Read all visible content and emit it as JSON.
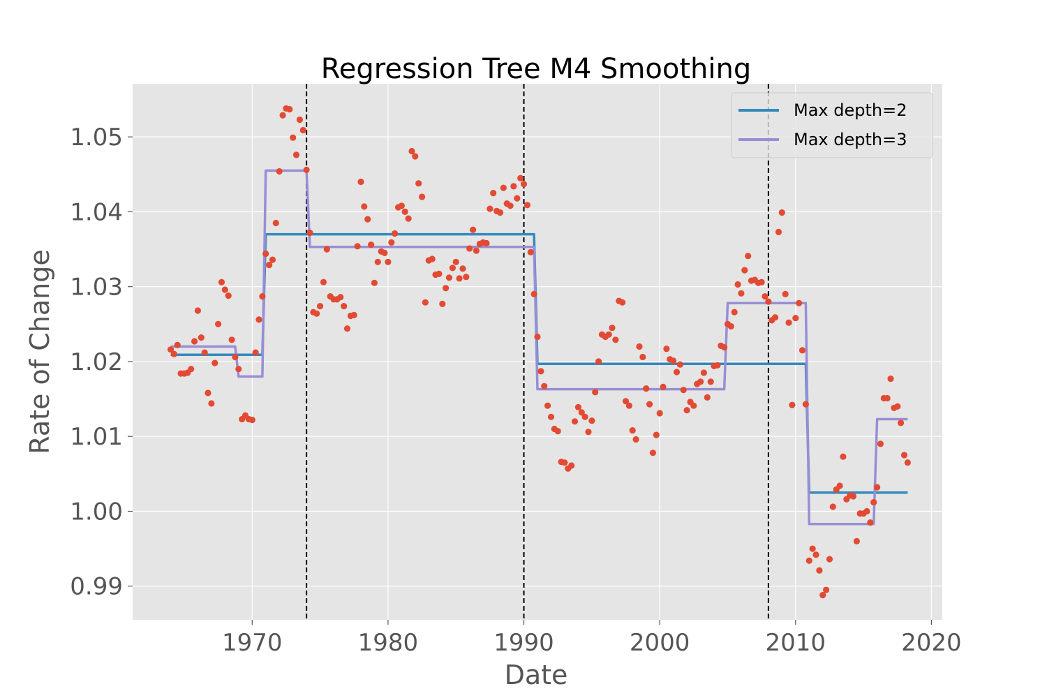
{
  "chart_data": {
    "type": "scatter",
    "title": "Regression Tree M4 Smoothing",
    "xlabel": "Date",
    "ylabel": "Rate of Change",
    "xlim": [
      1961.2,
      2020.8
    ],
    "ylim": [
      0.9855,
      1.0571
    ],
    "x_ticks": [
      1970,
      1980,
      1990,
      2000,
      2010,
      2020
    ],
    "x_tick_labels": [
      "1970",
      "1980",
      "1990",
      "2000",
      "2010",
      "2020"
    ],
    "y_ticks": [
      0.99,
      1.0,
      1.01,
      1.02,
      1.03,
      1.04,
      1.05
    ],
    "y_tick_labels": [
      "0.99",
      "1.00",
      "1.01",
      "1.02",
      "1.03",
      "1.04",
      "1.05"
    ],
    "grid": true,
    "legend_position": "top-right",
    "colors": {
      "background": "#e5e5e5",
      "grid": "#ffffff",
      "points": "#e24a33",
      "depth2": "#348abd",
      "depth3": "#988ed5",
      "vlines": "#000000"
    },
    "vlines": [
      1974.0,
      1990.0,
      2008.0
    ],
    "scatter": {
      "x": [
        1964.0,
        1964.25,
        1964.5,
        1964.75,
        1965.0,
        1965.25,
        1965.5,
        1965.75,
        1966.0,
        1966.25,
        1966.5,
        1966.75,
        1967.0,
        1967.25,
        1967.5,
        1967.75,
        1968.0,
        1968.25,
        1968.5,
        1968.75,
        1969.0,
        1969.25,
        1969.5,
        1969.75,
        1970.0,
        1970.25,
        1970.5,
        1970.75,
        1971.0,
        1971.25,
        1971.5,
        1971.75,
        1972.0,
        1972.25,
        1972.5,
        1972.75,
        1973.0,
        1973.25,
        1973.5,
        1973.75,
        1974.0,
        1974.25,
        1974.5,
        1974.75,
        1975.0,
        1975.25,
        1975.5,
        1975.75,
        1976.0,
        1976.25,
        1976.5,
        1976.75,
        1977.0,
        1977.25,
        1977.5,
        1977.75,
        1978.0,
        1978.25,
        1978.5,
        1978.75,
        1979.0,
        1979.25,
        1979.5,
        1979.75,
        1980.0,
        1980.25,
        1980.5,
        1980.75,
        1981.0,
        1981.25,
        1981.5,
        1981.75,
        1982.0,
        1982.25,
        1982.5,
        1982.75,
        1983.0,
        1983.25,
        1983.5,
        1983.75,
        1984.0,
        1984.25,
        1984.5,
        1984.75,
        1985.0,
        1985.25,
        1985.5,
        1985.75,
        1986.0,
        1986.25,
        1986.5,
        1986.75,
        1987.0,
        1987.25,
        1987.5,
        1987.75,
        1988.0,
        1988.25,
        1988.5,
        1988.75,
        1989.0,
        1989.25,
        1989.5,
        1989.75,
        1990.0,
        1990.25,
        1990.5,
        1990.75,
        1991.0,
        1991.25,
        1991.5,
        1991.75,
        1992.0,
        1992.25,
        1992.5,
        1992.75,
        1993.0,
        1993.25,
        1993.5,
        1993.75,
        1994.0,
        1994.25,
        1994.5,
        1994.75,
        1995.0,
        1995.25,
        1995.5,
        1995.75,
        1996.0,
        1996.25,
        1996.5,
        1996.75,
        1997.0,
        1997.25,
        1997.5,
        1997.75,
        1998.0,
        1998.25,
        1998.5,
        1998.75,
        1999.0,
        1999.25,
        1999.5,
        1999.75,
        2000.0,
        2000.25,
        2000.5,
        2000.75,
        2001.0,
        2001.25,
        2001.5,
        2001.75,
        2002.0,
        2002.25,
        2002.5,
        2002.75,
        2003.0,
        2003.25,
        2003.5,
        2003.75,
        2004.0,
        2004.25,
        2004.5,
        2004.75,
        2005.0,
        2005.25,
        2005.5,
        2005.75,
        2006.0,
        2006.25,
        2006.5,
        2006.75,
        2007.0,
        2007.25,
        2007.5,
        2007.75,
        2008.0,
        2008.25,
        2008.5,
        2008.75,
        2009.0,
        2009.25,
        2009.5,
        2009.75,
        2010.0,
        2010.25,
        2010.5,
        2010.75,
        2011.0,
        2011.25,
        2011.5,
        2011.75,
        2012.0,
        2012.25,
        2012.5,
        2012.75,
        2013.0,
        2013.25,
        2013.5,
        2013.75,
        2014.0,
        2014.25,
        2014.5,
        2014.75,
        2015.0,
        2015.25,
        2015.5,
        2015.75,
        2016.0,
        2016.25,
        2016.5,
        2016.75,
        2017.0,
        2017.25,
        2017.5,
        2017.75,
        2018.0,
        2018.25
      ],
      "y": [
        1.0216,
        1.021,
        1.0222,
        1.0184,
        1.0184,
        1.0185,
        1.019,
        1.0227,
        1.0268,
        1.0232,
        1.0212,
        1.0158,
        1.0144,
        1.0198,
        1.025,
        1.0306,
        1.0296,
        1.0288,
        1.0229,
        1.0206,
        1.019,
        1.0123,
        1.0128,
        1.0123,
        1.0122,
        1.0212,
        1.0256,
        1.0287,
        1.0344,
        1.0329,
        1.0336,
        1.0385,
        1.0454,
        1.0529,
        1.0538,
        1.0537,
        1.0499,
        1.0476,
        1.0523,
        1.0509,
        1.0456,
        1.0372,
        1.0266,
        1.0264,
        1.0274,
        1.0306,
        1.035,
        1.0287,
        1.0283,
        1.0283,
        1.0286,
        1.0274,
        1.0244,
        1.0261,
        1.0262,
        1.0354,
        1.044,
        1.0407,
        1.039,
        1.0356,
        1.0305,
        1.0333,
        1.0347,
        1.0345,
        1.0333,
        1.0359,
        1.0371,
        1.0406,
        1.0408,
        1.04,
        1.0391,
        1.0481,
        1.0474,
        1.0438,
        1.042,
        1.0279,
        1.0335,
        1.0337,
        1.0316,
        1.0317,
        1.0277,
        1.0298,
        1.0312,
        1.0325,
        1.0333,
        1.0311,
        1.0324,
        1.0313,
        1.0351,
        1.0376,
        1.0348,
        1.0357,
        1.0359,
        1.0358,
        1.0404,
        1.0425,
        1.0401,
        1.0399,
        1.0432,
        1.0411,
        1.0408,
        1.0434,
        1.0418,
        1.0445,
        1.0437,
        1.0409,
        1.0346,
        1.029,
        1.0233,
        1.0187,
        1.0167,
        1.0141,
        1.0126,
        1.011,
        1.0107,
        1.0066,
        1.0065,
        1.0057,
        1.0061,
        1.012,
        1.0139,
        1.0132,
        1.0126,
        1.0106,
        1.0121,
        1.0159,
        1.02,
        1.0236,
        1.0233,
        1.0236,
        1.0245,
        1.0229,
        1.0281,
        1.0279,
        1.0147,
        1.0141,
        1.0108,
        1.0096,
        1.022,
        1.0206,
        1.0164,
        1.0143,
        1.0078,
        1.0102,
        1.0131,
        1.0166,
        1.0217,
        1.0203,
        1.0201,
        1.0186,
        1.0196,
        1.0162,
        1.0135,
        1.0146,
        1.0141,
        1.017,
        1.0173,
        1.0185,
        1.0152,
        1.0173,
        1.0194,
        1.0195,
        1.0221,
        1.0219,
        1.025,
        1.0247,
        1.0266,
        1.0303,
        1.0291,
        1.0322,
        1.0341,
        1.0308,
        1.0309,
        1.0305,
        1.0306,
        1.0287,
        1.028,
        1.0255,
        1.0259,
        1.0373,
        1.0399,
        1.029,
        1.0252,
        1.0142,
        1.0258,
        1.0278,
        1.0215,
        1.0143,
        0.9934,
        0.995,
        0.9942,
        0.9921,
        0.9888,
        0.9895,
        0.9936,
        1.0006,
        1.0029,
        1.0034,
        1.0073,
        1.0016,
        1.0021,
        1.002,
        0.996,
        0.9997,
        0.9997,
        1.0,
        0.9985,
        1.0012,
        1.0032,
        1.009,
        1.0151,
        1.0151,
        1.0177,
        1.0138,
        1.014,
        1.0118,
        1.0075,
        1.0065
      ]
    },
    "series": [
      {
        "name": "Max depth=2",
        "x": [
          1964.0,
          1970.75,
          1971.0,
          1990.75,
          1991.0,
          2010.75,
          2011.0,
          2018.25
        ],
        "y": [
          1.0209,
          1.0209,
          1.037,
          1.037,
          1.0197,
          1.0197,
          1.0025,
          1.0025
        ]
      },
      {
        "name": "Max depth=3",
        "x": [
          1964.0,
          1968.75,
          1969.0,
          1970.75,
          1971.0,
          1974.0,
          1974.25,
          1990.75,
          1991.0,
          2004.75,
          2005.0,
          2010.75,
          2011.0,
          2015.75,
          2016.0,
          2018.25
        ],
        "y": [
          1.022,
          1.022,
          1.018,
          1.018,
          1.0455,
          1.0455,
          1.0353,
          1.0353,
          1.0163,
          1.0163,
          1.0278,
          1.0278,
          0.9983,
          0.9983,
          1.0123,
          1.0123
        ]
      }
    ]
  }
}
